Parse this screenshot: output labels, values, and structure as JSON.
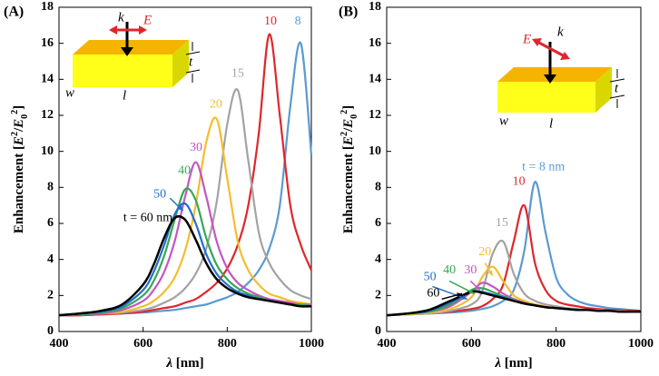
{
  "chart_data": [
    {
      "type": "line",
      "panel_label": "(A)",
      "xlabel": [
        "λ",
        " [nm]"
      ],
      "ylabel": [
        "Enhancement [",
        "E",
        "2",
        "/",
        "E",
        "0",
        "2",
        "]"
      ],
      "xlim": [
        400,
        1000
      ],
      "xticks": [
        400,
        600,
        800,
        1000
      ],
      "ylim": [
        0,
        18
      ],
      "yticks": [
        0,
        2,
        4,
        6,
        8,
        10,
        12,
        14,
        16,
        18
      ],
      "inset": {
        "k": "k",
        "E": "E",
        "t": "t",
        "w": "w",
        "l": "l"
      },
      "x": [
        400,
        450,
        500,
        550,
        600,
        625,
        650,
        675,
        700,
        725,
        750,
        775,
        800,
        825,
        850,
        875,
        900,
        925,
        950,
        975,
        1000
      ],
      "series": [
        {
          "name": "8",
          "color": "#5b9bd0",
          "values": [
            0.9,
            0.9,
            0.95,
            1.0,
            1.05,
            1.1,
            1.15,
            1.2,
            1.3,
            1.4,
            1.5,
            1.7,
            1.9,
            2.2,
            2.7,
            3.4,
            4.6,
            7.0,
            12.5,
            16.0,
            9.8
          ]
        },
        {
          "name": "10",
          "color": "#e0262b",
          "values": [
            0.9,
            0.9,
            0.95,
            1.0,
            1.1,
            1.2,
            1.3,
            1.4,
            1.6,
            1.8,
            2.2,
            2.7,
            3.5,
            4.8,
            7.0,
            11.0,
            16.5,
            12.0,
            7.0,
            4.8,
            3.4
          ]
        },
        {
          "name": "15",
          "color": "#a3a3a3",
          "values": [
            0.9,
            0.95,
            1.0,
            1.05,
            1.2,
            1.35,
            1.6,
            1.9,
            2.4,
            3.2,
            4.6,
            7.2,
            11.5,
            13.4,
            9.5,
            5.5,
            3.8,
            2.9,
            2.3,
            2.0,
            1.8
          ]
        },
        {
          "name": "20",
          "color": "#f4bd2e",
          "values": [
            0.9,
            0.95,
            1.0,
            1.1,
            1.4,
            1.7,
            2.2,
            3.0,
            4.5,
            7.0,
            10.5,
            11.8,
            8.5,
            5.0,
            3.4,
            2.6,
            2.1,
            1.9,
            1.7,
            1.6,
            1.5
          ]
        },
        {
          "name": "30",
          "color": "#c455c4",
          "values": [
            0.9,
            0.95,
            1.0,
            1.2,
            1.7,
            2.3,
            3.3,
            5.0,
            7.5,
            9.4,
            7.5,
            5.0,
            3.5,
            2.7,
            2.3,
            2.0,
            1.8,
            1.7,
            1.6,
            1.5,
            1.5
          ]
        },
        {
          "name": "40",
          "color": "#34a853",
          "values": [
            0.9,
            0.95,
            1.05,
            1.3,
            2.0,
            2.8,
            4.2,
            6.2,
            7.9,
            7.3,
            5.2,
            3.7,
            2.9,
            2.4,
            2.1,
            1.9,
            1.7,
            1.6,
            1.5,
            1.5,
            1.4
          ]
        },
        {
          "name": "50",
          "color": "#1f6fd0",
          "values": [
            0.9,
            1.0,
            1.1,
            1.4,
            2.3,
            3.3,
            4.8,
            6.5,
            7.1,
            6.0,
            4.3,
            3.2,
            2.6,
            2.2,
            2.0,
            1.8,
            1.7,
            1.6,
            1.5,
            1.4,
            1.4
          ]
        },
        {
          "name": "t = 60 nm",
          "color": "#000000",
          "values": [
            0.9,
            1.0,
            1.15,
            1.5,
            2.6,
            3.7,
            5.2,
            6.3,
            6.2,
            5.1,
            3.8,
            2.9,
            2.4,
            2.1,
            1.9,
            1.8,
            1.7,
            1.6,
            1.5,
            1.4,
            1.4
          ]
        }
      ]
    },
    {
      "type": "line",
      "panel_label": "(B)",
      "xlabel": [
        "λ",
        " [nm]"
      ],
      "ylabel": [
        "Enhancement [",
        "E",
        "2",
        "/",
        "E",
        "0",
        "2",
        "]"
      ],
      "xlim": [
        400,
        1000
      ],
      "xticks": [
        400,
        600,
        800,
        1000
      ],
      "ylim": [
        0,
        18
      ],
      "yticks": [
        0,
        2,
        4,
        6,
        8,
        10,
        12,
        14,
        16,
        18
      ],
      "inset": {
        "k": "k",
        "E": "E",
        "t": "t",
        "w": "w",
        "l": "l"
      },
      "x": [
        400,
        450,
        500,
        550,
        600,
        625,
        650,
        675,
        700,
        725,
        750,
        775,
        800,
        825,
        850,
        875,
        900,
        925,
        950,
        975,
        1000
      ],
      "series": [
        {
          "name": "t = 8 nm",
          "color": "#5b9bd0",
          "values": [
            0.9,
            0.95,
            1.0,
            1.05,
            1.15,
            1.25,
            1.4,
            1.7,
            2.3,
            4.5,
            8.3,
            5.5,
            3.0,
            2.1,
            1.7,
            1.5,
            1.4,
            1.3,
            1.25,
            1.2,
            1.15
          ]
        },
        {
          "name": "10",
          "color": "#e0262b",
          "values": [
            0.9,
            0.95,
            1.0,
            1.1,
            1.25,
            1.4,
            1.8,
            2.6,
            5.0,
            7.0,
            3.8,
            2.3,
            1.7,
            1.5,
            1.4,
            1.3,
            1.25,
            1.2,
            1.2,
            1.15,
            1.15
          ]
        },
        {
          "name": "15",
          "color": "#a3a3a3",
          "values": [
            0.9,
            0.95,
            1.0,
            1.15,
            1.5,
            2.2,
            4.3,
            5.0,
            3.2,
            2.1,
            1.7,
            1.5,
            1.4,
            1.3,
            1.25,
            1.2,
            1.2,
            1.15,
            1.15,
            1.1,
            1.1
          ]
        },
        {
          "name": "20",
          "color": "#f4bd2e",
          "values": [
            0.9,
            0.95,
            1.05,
            1.25,
            1.9,
            3.0,
            3.6,
            2.8,
            2.0,
            1.7,
            1.5,
            1.4,
            1.3,
            1.25,
            1.2,
            1.2,
            1.15,
            1.15,
            1.1,
            1.1,
            1.1
          ]
        },
        {
          "name": "30",
          "color": "#c455c4",
          "values": [
            0.9,
            1.0,
            1.1,
            1.4,
            2.2,
            2.7,
            2.5,
            2.1,
            1.8,
            1.6,
            1.45,
            1.35,
            1.3,
            1.25,
            1.2,
            1.2,
            1.15,
            1.15,
            1.1,
            1.1,
            1.1
          ]
        },
        {
          "name": "40",
          "color": "#34a853",
          "values": [
            0.9,
            1.0,
            1.1,
            1.5,
            2.3,
            2.4,
            2.2,
            1.95,
            1.75,
            1.55,
            1.45,
            1.35,
            1.3,
            1.25,
            1.2,
            1.2,
            1.15,
            1.15,
            1.1,
            1.1,
            1.1
          ]
        },
        {
          "name": "50",
          "color": "#1f6fd0",
          "values": [
            0.9,
            1.0,
            1.15,
            1.6,
            2.2,
            2.2,
            2.05,
            1.9,
            1.7,
            1.55,
            1.45,
            1.35,
            1.3,
            1.25,
            1.2,
            1.2,
            1.15,
            1.15,
            1.1,
            1.1,
            1.1
          ]
        },
        {
          "name": "60",
          "color": "#000000",
          "values": [
            0.9,
            1.0,
            1.2,
            1.7,
            2.2,
            2.15,
            2.0,
            1.85,
            1.7,
            1.55,
            1.45,
            1.35,
            1.3,
            1.25,
            1.2,
            1.2,
            1.15,
            1.15,
            1.1,
            1.1,
            1.1
          ]
        }
      ]
    }
  ]
}
